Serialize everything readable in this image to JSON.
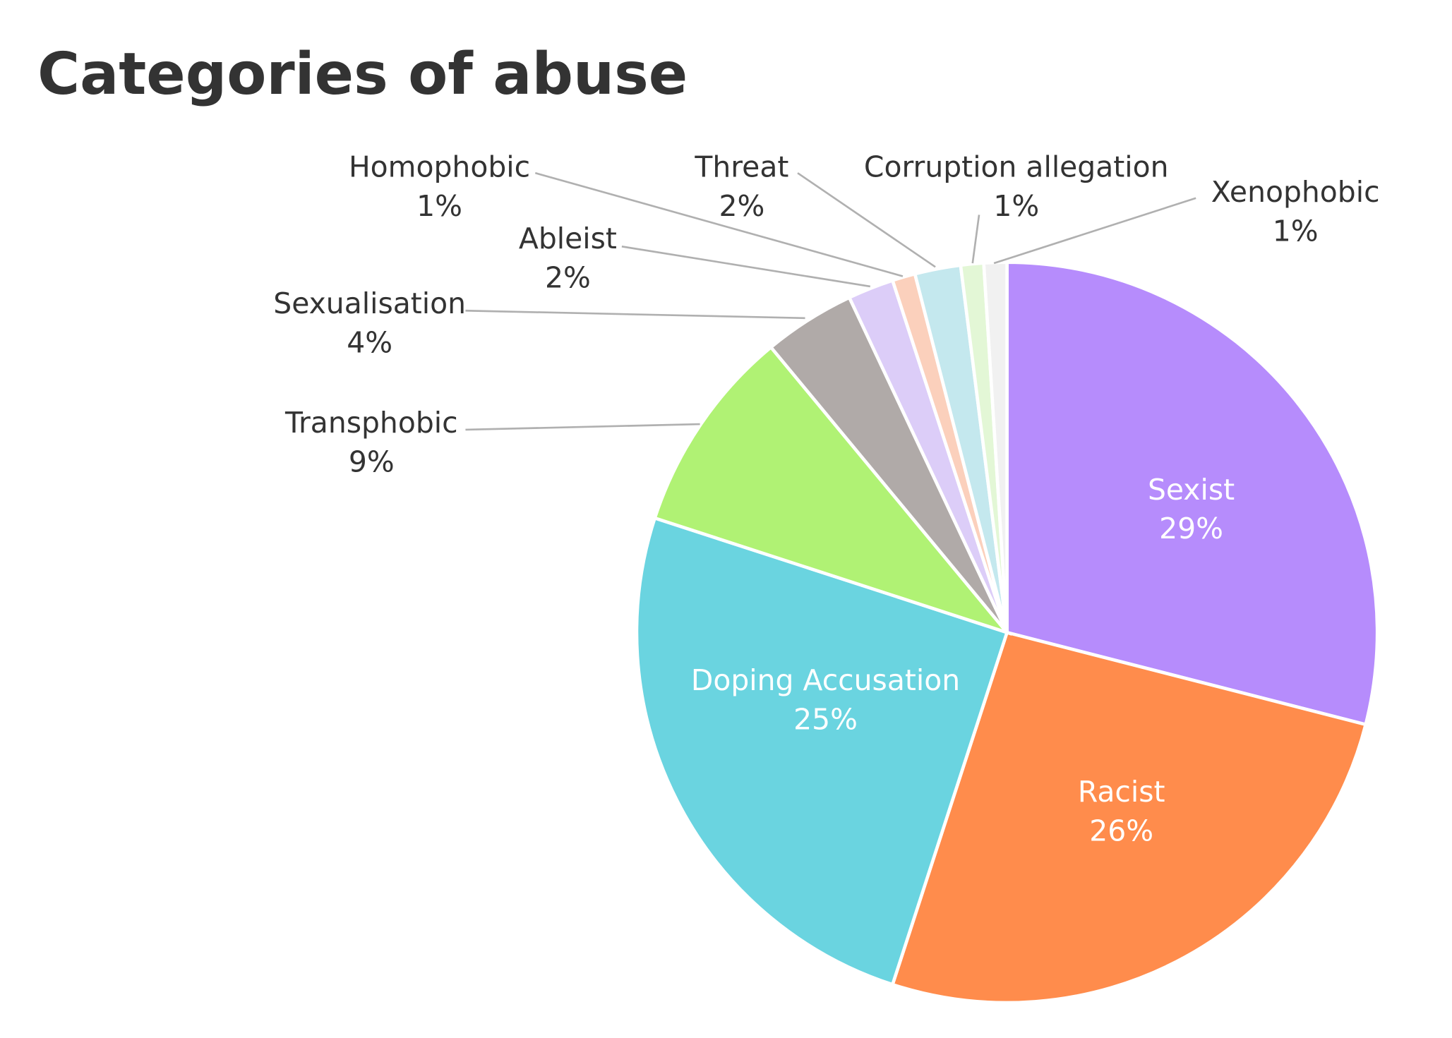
{
  "chart_data": {
    "type": "pie",
    "title": "Categories of abuse",
    "slices": [
      {
        "label": "Sexist",
        "value": 29,
        "display": "29%",
        "color": "#b68cfc",
        "label_inside": true
      },
      {
        "label": "Racist",
        "value": 26,
        "display": "26%",
        "color": "#ff8c4c",
        "label_inside": true
      },
      {
        "label": "Doping Accusation",
        "value": 25,
        "display": "25%",
        "color": "#6ad4e0",
        "label_inside": true
      },
      {
        "label": "Transphobic",
        "value": 9,
        "display": "9%",
        "color": "#b0f274",
        "label_inside": false
      },
      {
        "label": "Sexualisation",
        "value": 4,
        "display": "4%",
        "color": "#b0aaa8",
        "label_inside": false
      },
      {
        "label": "Ableist",
        "value": 2,
        "display": "2%",
        "color": "#dccdf8",
        "label_inside": false
      },
      {
        "label": "Homophobic",
        "value": 1,
        "display": "1%",
        "color": "#fbd0bc",
        "label_inside": false
      },
      {
        "label": "Threat",
        "value": 2,
        "display": "2%",
        "color": "#c4e8ee",
        "label_inside": false
      },
      {
        "label": "Corruption allegation",
        "value": 1,
        "display": "1%",
        "color": "#e3f7d6",
        "label_inside": false
      },
      {
        "label": "Xenophobic",
        "value": 1,
        "display": "1%",
        "color": "#f1f1f1",
        "label_inside": false
      }
    ],
    "start_angle": "12 o'clock",
    "direction": "clockwise",
    "leader_line_color": "#b0b0b0"
  }
}
